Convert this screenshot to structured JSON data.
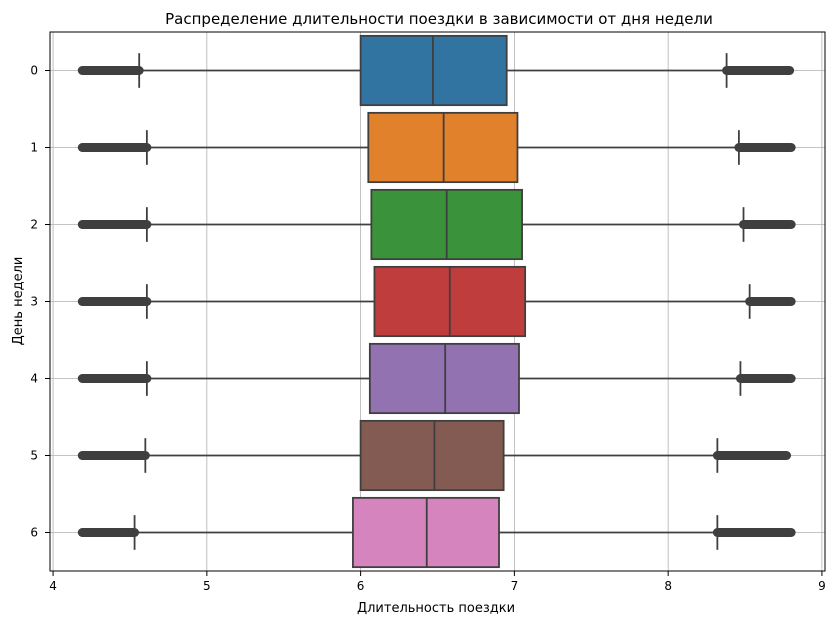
{
  "chart_data": {
    "type": "box",
    "orientation": "horizontal",
    "title": "Распределение длительности поездки в зависимости от дня недели",
    "xlabel": "Длительность поездки",
    "ylabel": "День недели",
    "xlim": [
      3.98,
      9.02
    ],
    "x_ticks": [
      4,
      5,
      6,
      7,
      8,
      9
    ],
    "grid": true,
    "categories": [
      "0",
      "1",
      "2",
      "3",
      "4",
      "5",
      "6"
    ],
    "series": [
      {
        "category": "0",
        "color": "#3274a1",
        "q1": 6.0,
        "median": 6.47,
        "q3": 6.95,
        "whisker_low": 4.56,
        "whisker_high": 8.38,
        "outlier_low": [
          4.19,
          4.56
        ],
        "outlier_high": [
          8.38,
          8.79
        ]
      },
      {
        "category": "1",
        "color": "#e1812c",
        "q1": 6.05,
        "median": 6.54,
        "q3": 7.02,
        "whisker_low": 4.61,
        "whisker_high": 8.46,
        "outlier_low": [
          4.19,
          4.61
        ],
        "outlier_high": [
          8.46,
          8.8
        ]
      },
      {
        "category": "2",
        "color": "#3a923a",
        "q1": 6.07,
        "median": 6.56,
        "q3": 7.05,
        "whisker_low": 4.61,
        "whisker_high": 8.49,
        "outlier_low": [
          4.19,
          4.61
        ],
        "outlier_high": [
          8.49,
          8.8
        ]
      },
      {
        "category": "3",
        "color": "#c03d3e",
        "q1": 6.09,
        "median": 6.58,
        "q3": 7.07,
        "whisker_low": 4.61,
        "whisker_high": 8.53,
        "outlier_low": [
          4.19,
          4.61
        ],
        "outlier_high": [
          8.53,
          8.8
        ]
      },
      {
        "category": "4",
        "color": "#9372b2",
        "q1": 6.06,
        "median": 6.55,
        "q3": 7.03,
        "whisker_low": 4.61,
        "whisker_high": 8.47,
        "outlier_low": [
          4.19,
          4.61
        ],
        "outlier_high": [
          8.47,
          8.8
        ]
      },
      {
        "category": "5",
        "color": "#845b53",
        "q1": 6.0,
        "median": 6.48,
        "q3": 6.93,
        "whisker_low": 4.6,
        "whisker_high": 8.32,
        "outlier_low": [
          4.19,
          4.6
        ],
        "outlier_high": [
          8.32,
          8.77
        ]
      },
      {
        "category": "6",
        "color": "#d684bd",
        "q1": 5.95,
        "median": 6.43,
        "q3": 6.9,
        "whisker_low": 4.53,
        "whisker_high": 8.32,
        "outlier_low": [
          4.19,
          4.53
        ],
        "outlier_high": [
          8.32,
          8.8
        ]
      }
    ]
  }
}
